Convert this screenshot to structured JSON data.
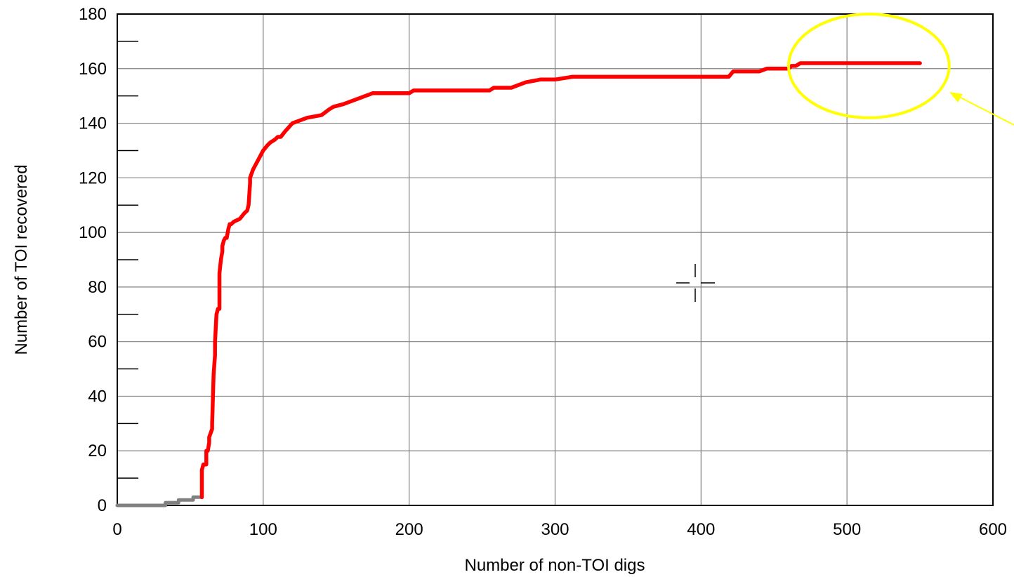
{
  "chart_data": {
    "type": "line",
    "title": "",
    "xlabel": "Number of non-TOI digs",
    "ylabel": "Number of TOI recovered",
    "xlim": [
      0,
      600
    ],
    "ylim": [
      0,
      180
    ],
    "x_ticks": [
      0,
      100,
      200,
      300,
      400,
      500,
      600
    ],
    "y_ticks": [
      0,
      20,
      40,
      60,
      80,
      100,
      120,
      140,
      160,
      180
    ],
    "x_tick_labels": [
      "0",
      "100",
      "200",
      "300",
      "400",
      "500",
      "600"
    ],
    "y_tick_labels": [
      "0",
      "20",
      "40",
      "60",
      "80",
      "100",
      "120",
      "140",
      "160",
      "180"
    ],
    "grid": true,
    "legend": "none",
    "colors": {
      "primary_series": "#ff0000",
      "initial_series": "#808080",
      "highlight_ellipse": "#ffff00",
      "annotation_arrow": "#ffff00",
      "grid": "#808080"
    },
    "series": [
      {
        "color": "#808080",
        "x": [
          0,
          33,
          33,
          42,
          42,
          52,
          52,
          58
        ],
        "y": [
          0,
          0,
          1,
          1,
          2,
          2,
          3,
          3
        ]
      },
      {
        "color": "#ff0000",
        "x": [
          58,
          58,
          59,
          61,
          61,
          62,
          63,
          63,
          65,
          65,
          66,
          67,
          67,
          68,
          69,
          70,
          70,
          71,
          72,
          72,
          73,
          74,
          75,
          76,
          77,
          78,
          80,
          80,
          84,
          87,
          89,
          90,
          91,
          91,
          93,
          96,
          98,
          100,
          103,
          105,
          108,
          110,
          112,
          115,
          120,
          125,
          130,
          140,
          145,
          148,
          155,
          160,
          165,
          170,
          175,
          200,
          203,
          230,
          255,
          258,
          270,
          275,
          280,
          290,
          300,
          312,
          315,
          350,
          419,
          422,
          440,
          445,
          460,
          462,
          465,
          468,
          500,
          550
        ],
        "y": [
          3,
          13,
          15,
          15,
          20,
          20,
          23,
          25,
          28,
          30,
          48,
          55,
          60,
          70,
          72,
          72,
          85,
          90,
          93,
          95,
          97,
          98,
          98,
          101,
          103,
          103,
          104,
          104,
          105,
          107,
          108,
          110,
          118,
          120,
          123,
          126,
          128,
          130,
          132,
          133,
          134,
          135,
          135,
          137,
          140,
          141,
          142,
          143,
          145,
          146,
          147,
          148,
          149,
          150,
          151,
          151,
          152,
          152,
          152,
          153,
          153,
          154,
          155,
          156,
          156,
          157,
          157,
          157,
          157,
          159,
          159,
          160,
          160,
          161,
          161,
          162,
          162,
          162
        ]
      }
    ],
    "annotations": [
      {
        "type": "ellipse",
        "center_x": 515,
        "center_y": 161,
        "semi_x": 55,
        "semi_y": 19,
        "color": "#ffff00"
      },
      {
        "type": "arrow",
        "direction": "pointing left-up toward ellipse",
        "color": "#ffff00"
      }
    ]
  }
}
